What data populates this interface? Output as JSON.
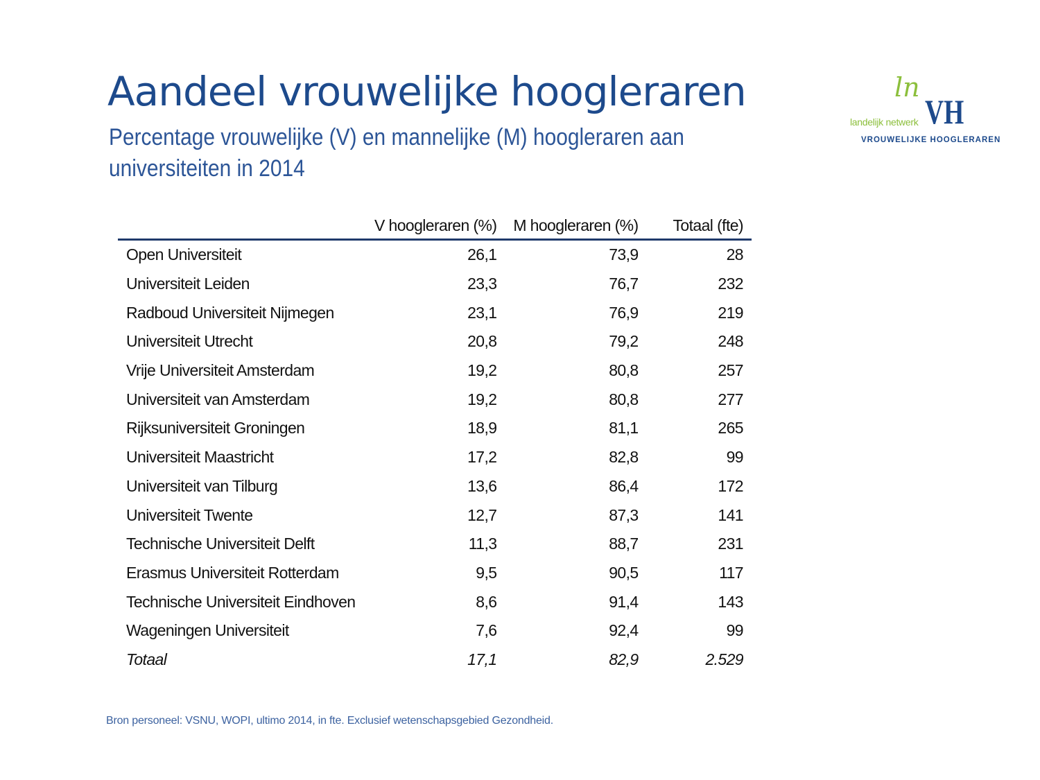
{
  "title": "Aandeel vrouwelijke hoogleraren",
  "subtitle": "Percentage vrouwelijke (V) en mannelijke (M) hoogleraren aan universiteiten in 2014",
  "logo": {
    "mark": "ln",
    "network": "landelijk netwerk",
    "initials": "VH",
    "name": "VROUWELIJKE HOOGLERAREN"
  },
  "table": {
    "headers": [
      "",
      "V hoogleraren (%)",
      "M hoogleraren (%)",
      "Totaal (fte)"
    ],
    "rows": [
      [
        "Open Universiteit",
        "26,1",
        "73,9",
        "28"
      ],
      [
        "Universiteit Leiden",
        "23,3",
        "76,7",
        "232"
      ],
      [
        "Radboud Universiteit Nijmegen",
        "23,1",
        "76,9",
        "219"
      ],
      [
        "Universiteit Utrecht",
        "20,8",
        "79,2",
        "248"
      ],
      [
        "Vrije Universiteit Amsterdam",
        "19,2",
        "80,8",
        "257"
      ],
      [
        "Universiteit van Amsterdam",
        "19,2",
        "80,8",
        "277"
      ],
      [
        "Rijksuniversiteit Groningen",
        "18,9",
        "81,1",
        "265"
      ],
      [
        "Universiteit Maastricht",
        "17,2",
        "82,8",
        "99"
      ],
      [
        "Universiteit van Tilburg",
        "13,6",
        "86,4",
        "172"
      ],
      [
        "Universiteit Twente",
        "12,7",
        "87,3",
        "141"
      ],
      [
        "Technische Universiteit Delft",
        "11,3",
        "88,7",
        "231"
      ],
      [
        "Erasmus Universiteit Rotterdam",
        "9,5",
        "90,5",
        "117"
      ],
      [
        "Technische Universiteit Eindhoven",
        "8,6",
        "91,4",
        "143"
      ],
      [
        "Wageningen Universiteit",
        "7,6",
        "92,4",
        "99"
      ]
    ],
    "total": [
      "Totaal",
      "17,1",
      "82,9",
      "2.529"
    ]
  },
  "source": "Bron personeel: VSNU, WOPI, ultimo 2014, in fte. Exclusief wetenschapsgebied Gezondheid."
}
